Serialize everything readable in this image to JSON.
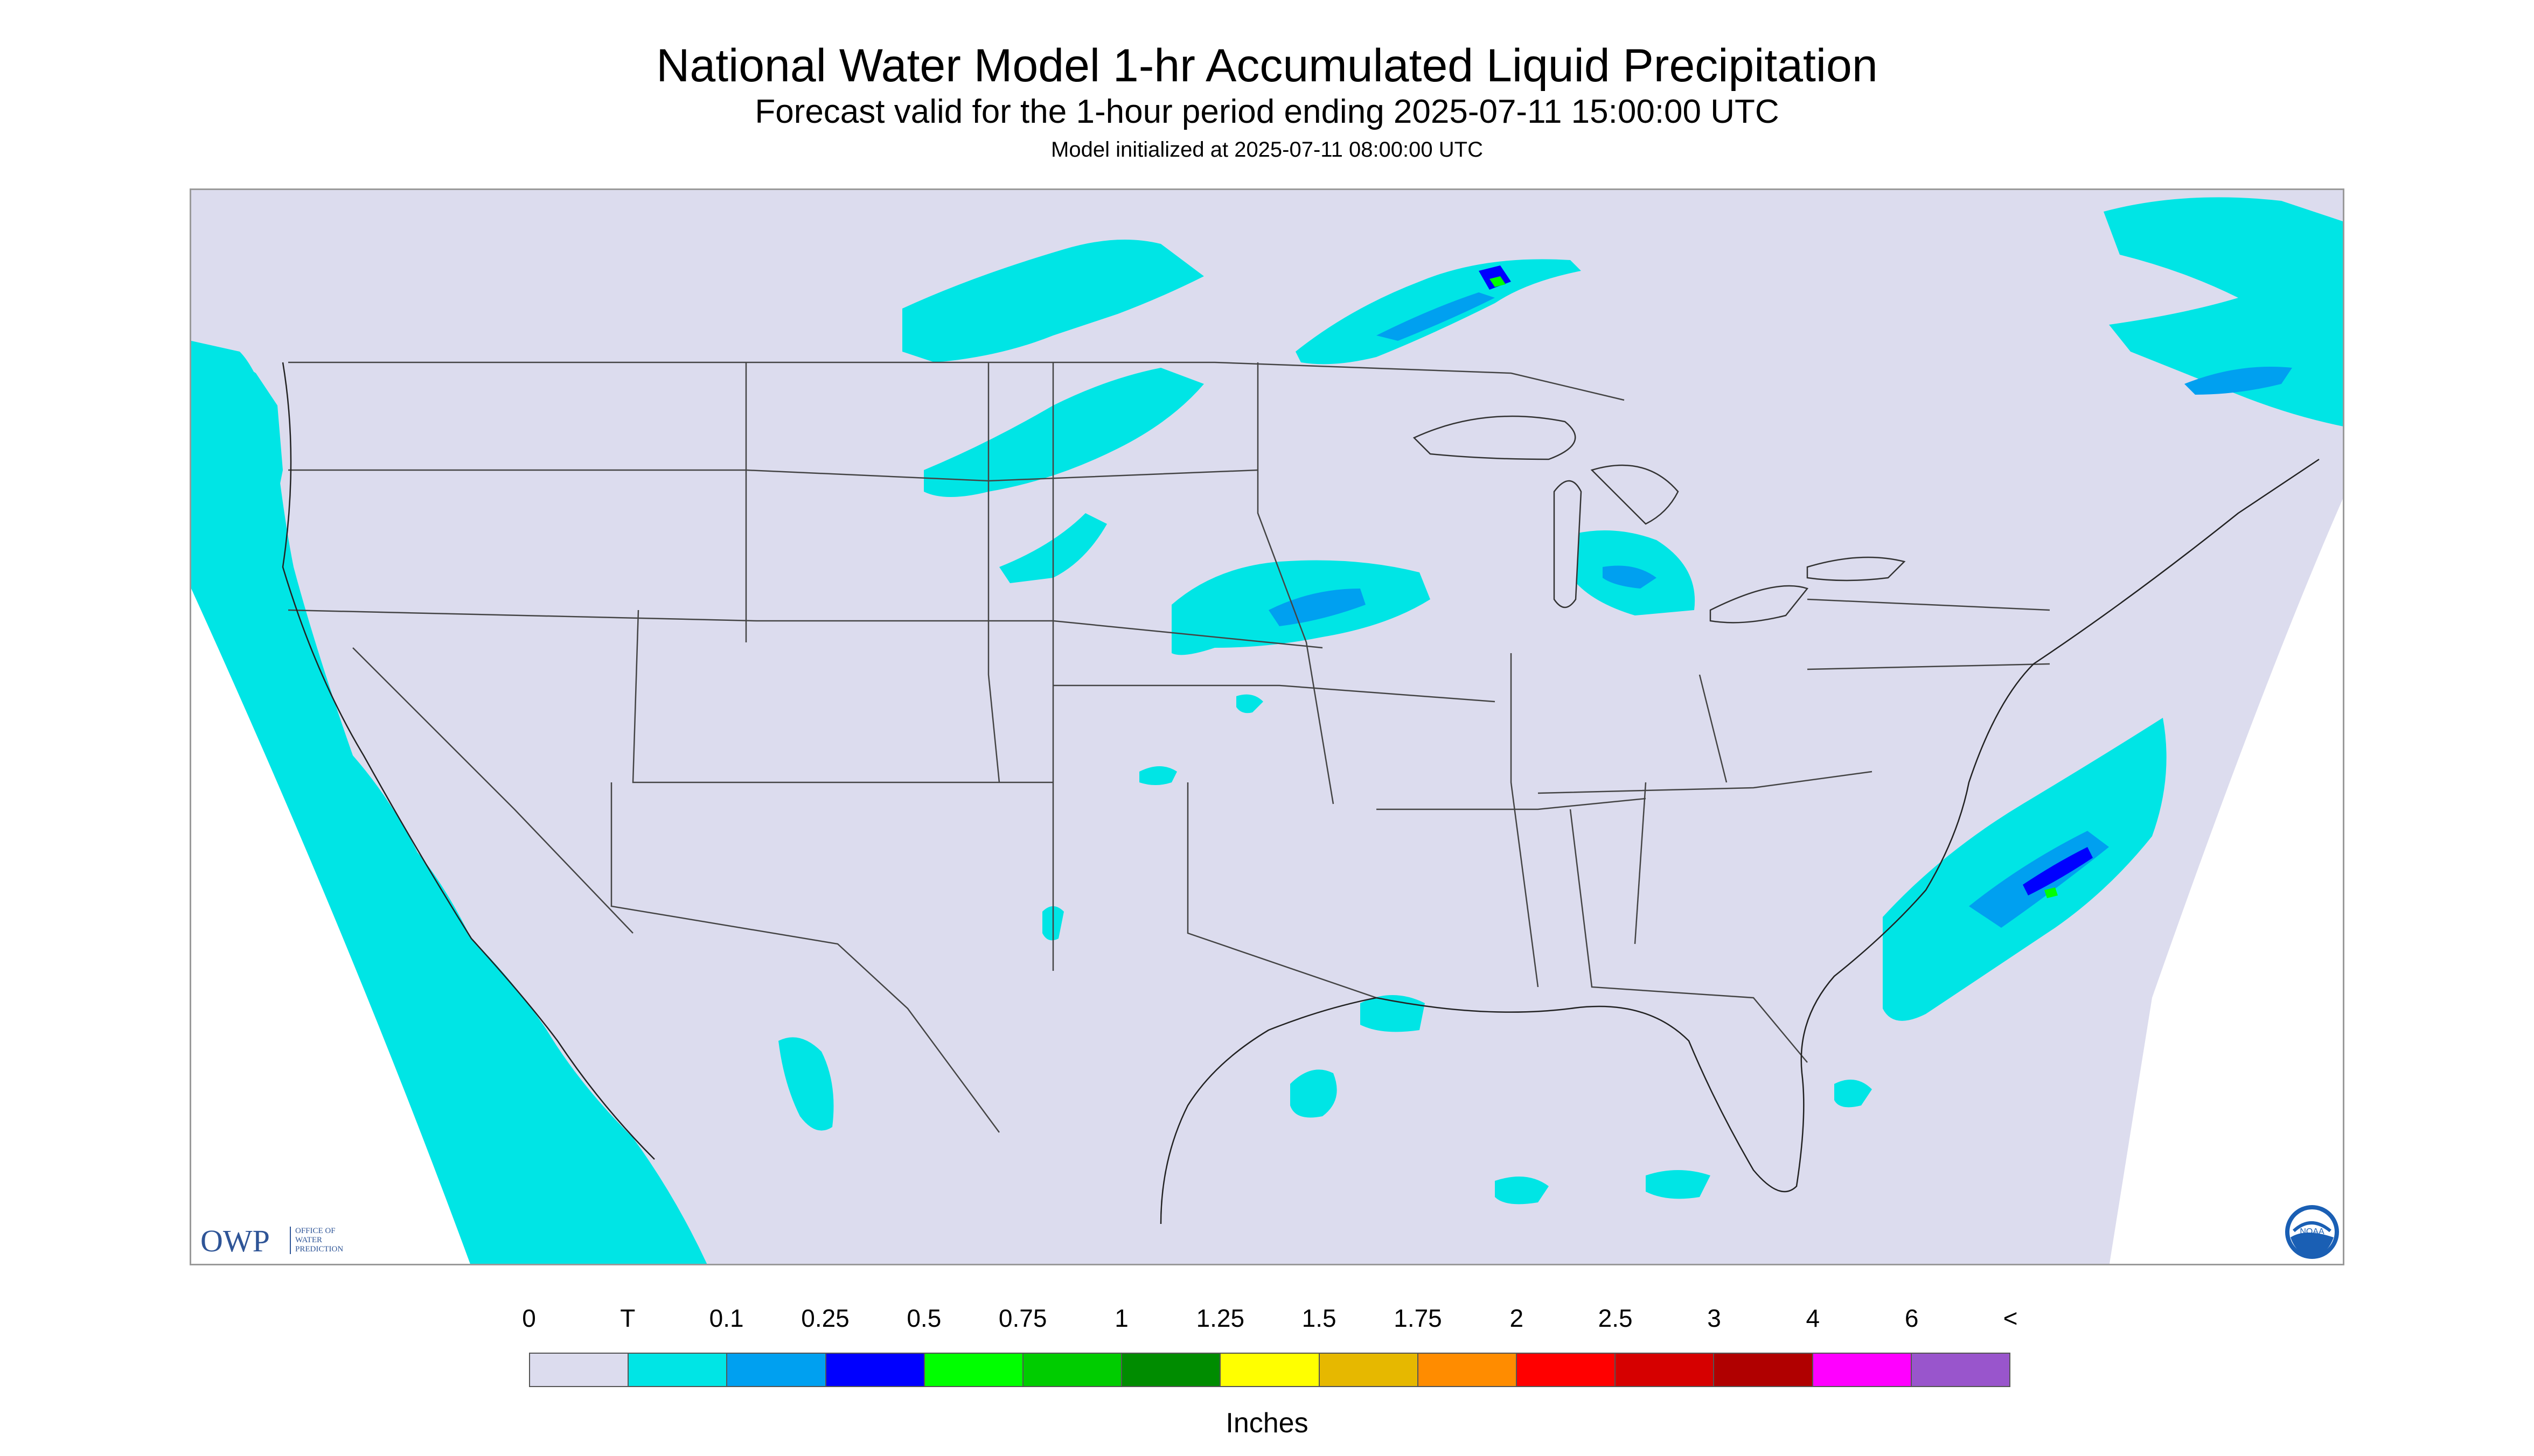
{
  "header": {
    "title": "National Water Model 1-hr Accumulated Liquid Precipitation",
    "subtitle": "Forecast valid for the 1-hour period ending 2025-07-11 15:00:00 UTC",
    "init": "Model initialized at 2025-07-11 08:00:00 UTC"
  },
  "map": {
    "background_color": "#dcdcee",
    "offgrid_color": "#ffffff",
    "boundary_color": "#444444",
    "precip_colors": {
      "trace": "#00e5e5",
      "light": "#00a0f0",
      "moderate": "#0000ff",
      "heavy": "#00ff00"
    }
  },
  "logos": {
    "owp_letters": "OWP",
    "owp_text": "OFFICE OF\nWATER\nPREDICTION",
    "noaa_icon": "noaa-logo-icon",
    "noaa_text": "NOAA"
  },
  "legend": {
    "labels": [
      "0",
      "T",
      "0.1",
      "0.25",
      "0.5",
      "0.75",
      "1",
      "1.25",
      "1.5",
      "1.75",
      "2",
      "2.5",
      "3",
      "4",
      "6",
      "<"
    ],
    "colors": [
      "#dcdcee",
      "#00e5e5",
      "#00a0f0",
      "#0000ff",
      "#00ff00",
      "#00cc00",
      "#008c00",
      "#ffff00",
      "#e6b800",
      "#ff8c00",
      "#ff0000",
      "#d60000",
      "#b00000",
      "#ff00ff",
      "#9955cc"
    ],
    "units": "Inches"
  }
}
